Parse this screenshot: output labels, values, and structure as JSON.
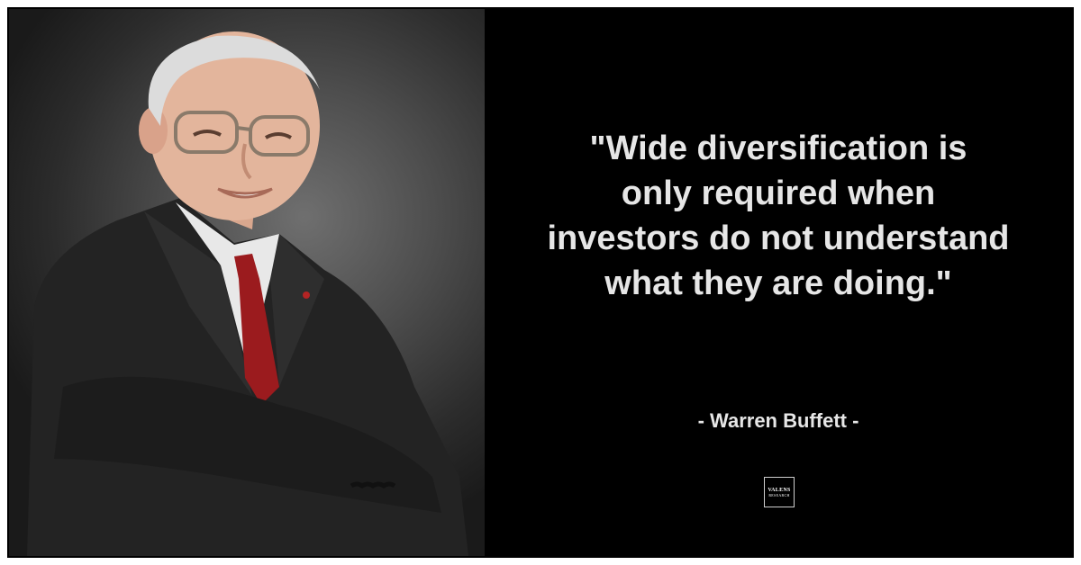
{
  "quote": {
    "lines": [
      "\"Wide diversification is",
      "only required when",
      "investors do not understand",
      "what they are doing.\""
    ]
  },
  "author": "- Warren Buffett -",
  "logo": {
    "line1": "VALENS",
    "line2": "RESEARCH"
  },
  "colors": {
    "background": "#000000",
    "text": "#e6e6e6",
    "border": "#ffffff"
  }
}
